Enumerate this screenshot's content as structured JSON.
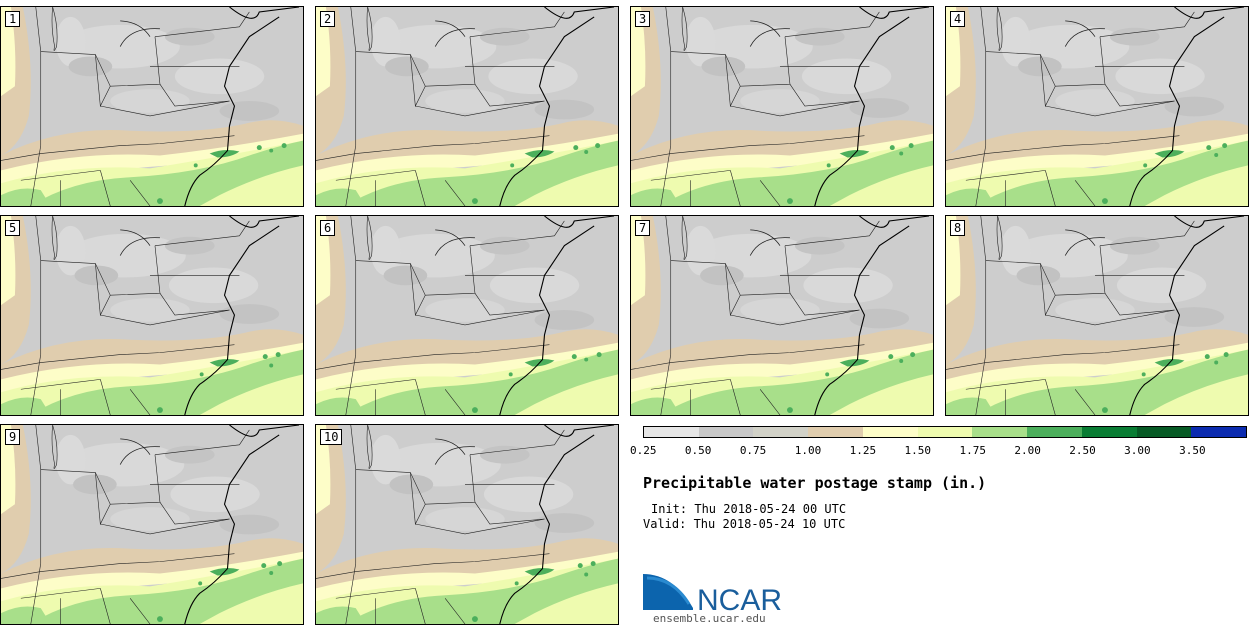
{
  "panels": [
    "1",
    "2",
    "3",
    "4",
    "5",
    "6",
    "7",
    "8",
    "9",
    "10"
  ],
  "legend": {
    "colors": [
      "#e6e6e6",
      "#c8c8c8",
      "#d2d2c8",
      "#e0cdae",
      "#fdfdc8",
      "#eefbaf",
      "#a8df8a",
      "#4caf5c",
      "#097d34",
      "#065a25",
      "#0b2bb0"
    ],
    "ticks": [
      "0.25",
      "0.50",
      "0.75",
      "1.00",
      "1.25",
      "1.50",
      "1.75",
      "2.00",
      "2.50",
      "3.00",
      "3.50"
    ]
  },
  "title": "Precipitable water postage stamp (in.)",
  "init": "Init: Thu 2018-05-24 00 UTC",
  "valid": "Valid: Thu 2018-05-24 10 UTC",
  "logo": {
    "text": "NCAR",
    "url": "ensemble.ucar.edu",
    "color": "#1a6bb0"
  }
}
